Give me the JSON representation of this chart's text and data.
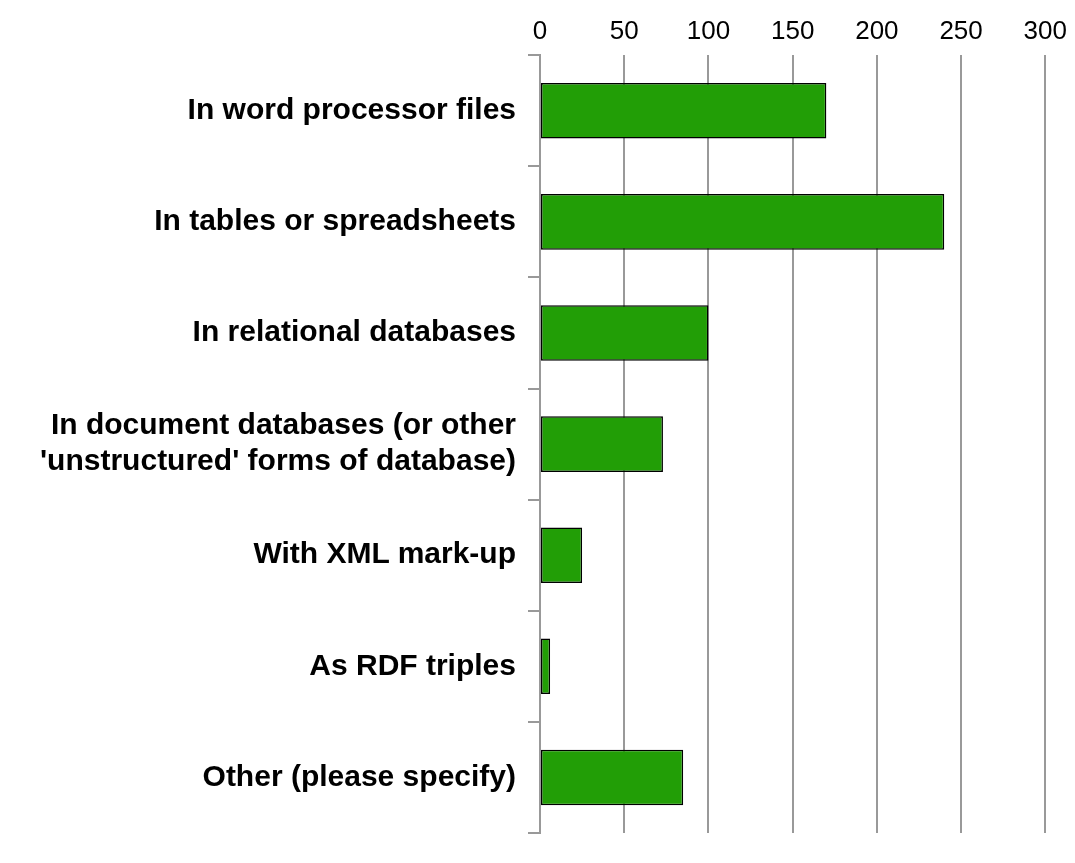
{
  "chart_data": {
    "type": "bar",
    "orientation": "horizontal",
    "categories": [
      "In word processor files",
      "In tables or spreadsheets",
      "In relational databases",
      "In document databases (or other 'unstructured' forms of database)",
      "With XML mark-up",
      "As RDF triples",
      "Other (please specify)"
    ],
    "values": [
      170,
      240,
      100,
      73,
      25,
      6,
      85
    ],
    "color": "#229e06",
    "xlim": [
      0,
      300
    ],
    "xticks": [
      0,
      50,
      100,
      150,
      200,
      250,
      300
    ],
    "grid": "x",
    "legend": false
  }
}
